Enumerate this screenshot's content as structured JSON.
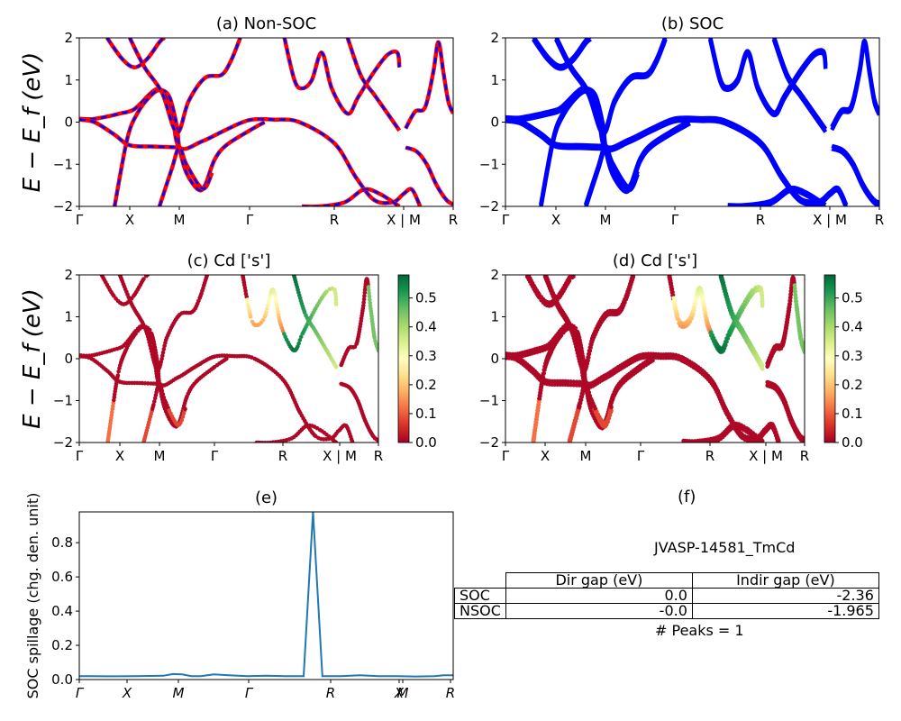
{
  "chart_data": [
    {
      "panel": "a",
      "type": "line",
      "title": "(a) Non-SOC",
      "ylabel": "E − E_f (eV)",
      "ylim": [
        -2,
        2
      ],
      "yticks": [
        "2",
        "1",
        "0",
        "−1",
        "−2"
      ],
      "xticks": [
        "Γ",
        "X",
        "M",
        "Γ",
        "R",
        "X | M",
        "R"
      ],
      "line_colors": [
        "#ff0000",
        "#0000ff"
      ],
      "bands": [
        [
          [
            0,
            0.08
          ],
          [
            0.25,
            0.07
          ],
          [
            0.5,
            0.12
          ],
          [
            0.8,
            0.2
          ],
          [
            1.05,
            0.28
          ],
          [
            1.2,
            0.42
          ],
          [
            1.4,
            0.66
          ],
          [
            1.55,
            0.78
          ],
          [
            1.7,
            0.7
          ],
          [
            1.85,
            0.3
          ],
          [
            2,
            -0.6
          ],
          [
            2.5,
            -0.45
          ],
          [
            3,
            -0.18
          ],
          [
            3.5,
            0.05
          ],
          [
            4,
            0.06
          ],
          [
            4.5,
            0.0
          ],
          [
            5.2,
            -0.5
          ],
          [
            5.6,
            -1.3
          ],
          [
            5.95,
            -1.85
          ],
          [
            6.3,
            -1.9
          ],
          [
            6.5,
            -1.7
          ],
          [
            6.75,
            -1.6
          ],
          [
            7.0,
            -2.0
          ]
        ],
        [
          [
            0,
            0.06
          ],
          [
            0.3,
            0.0
          ],
          [
            0.7,
            -0.3
          ],
          [
            1.0,
            -0.55
          ],
          [
            1.5,
            -0.58
          ],
          [
            2,
            -0.6
          ]
        ],
        [
          [
            0.7,
            -2.0
          ],
          [
            0.95,
            -0.4
          ],
          [
            1.15,
            0.2
          ],
          [
            1.4,
            0.6
          ],
          [
            1.6,
            0.76
          ],
          [
            1.8,
            0.6
          ],
          [
            1.95,
            -0.1
          ],
          [
            2,
            -0.6
          ],
          [
            2.15,
            -1.2
          ],
          [
            2.4,
            -1.6
          ],
          [
            2.55,
            -1.5
          ],
          [
            2.75,
            -0.9
          ],
          [
            3.0,
            -0.55
          ],
          [
            3.5,
            -0.2
          ],
          [
            3.8,
            0.0
          ]
        ],
        [
          [
            0.55,
            2.0
          ],
          [
            0.85,
            1.5
          ],
          [
            1.1,
            1.3
          ],
          [
            1.35,
            1.5
          ],
          [
            1.6,
            1.9
          ],
          [
            1.7,
            2.0
          ]
        ],
        [
          [
            1.0,
            2.0
          ],
          [
            1.3,
            1.3
          ],
          [
            1.65,
            0.7
          ],
          [
            1.95,
            -0.25
          ],
          [
            2.2,
            0.5
          ],
          [
            2.55,
            1.05
          ],
          [
            2.9,
            1.12
          ],
          [
            3.1,
            1.45
          ],
          [
            3.3,
            2.0
          ]
        ],
        [
          [
            1.6,
            -2.0
          ],
          [
            1.85,
            -1.1
          ],
          [
            2.0,
            -0.6
          ],
          [
            2.15,
            -1.0
          ],
          [
            2.5,
            -1.58
          ],
          [
            2.7,
            -1.2
          ]
        ],
        [
          [
            4.2,
            2.0
          ],
          [
            4.4,
            1.0
          ],
          [
            4.55,
            0.8
          ],
          [
            4.75,
            1.0
          ],
          [
            4.95,
            1.65
          ],
          [
            5.15,
            0.8
          ],
          [
            5.45,
            0.2
          ],
          [
            5.65,
            0.6
          ],
          [
            5.95,
            1.2
          ],
          [
            6.2,
            1.6
          ],
          [
            6.38,
            1.65
          ],
          [
            6.42,
            1.3
          ]
        ],
        [
          [
            5.45,
            2.0
          ],
          [
            5.7,
            1.1
          ],
          [
            5.95,
            0.65
          ],
          [
            6.2,
            0.2
          ],
          [
            6.42,
            -0.2
          ]
        ],
        [
          [
            4.55,
            -2.0
          ],
          [
            4.9,
            -2.0
          ],
          [
            5.4,
            -1.9
          ],
          [
            5.75,
            -1.6
          ],
          [
            6.05,
            -1.7
          ],
          [
            6.42,
            -2.0
          ]
        ],
        [
          [
            6.56,
            -0.15
          ],
          [
            6.85,
            0.25
          ],
          [
            7.15,
            0.35
          ],
          [
            7.4,
            1.2
          ],
          [
            7.55,
            1.9
          ],
          [
            7.7,
            1.2
          ],
          [
            7.85,
            0.5
          ],
          [
            8.0,
            0.2
          ]
        ],
        [
          [
            6.56,
            -0.6
          ],
          [
            6.9,
            -0.7
          ],
          [
            7.2,
            -1.0
          ],
          [
            7.5,
            -1.5
          ],
          [
            7.8,
            -1.85
          ],
          [
            8.0,
            -1.95
          ]
        ]
      ]
    },
    {
      "panel": "b",
      "type": "line",
      "title": "(b) SOC",
      "ylim": [
        -2,
        2
      ],
      "yticks": [
        "2",
        "1",
        "0",
        "−1",
        "−2"
      ],
      "xticks": [
        "Γ",
        "X",
        "M",
        "Γ",
        "R",
        "X | M",
        "R"
      ],
      "line_color": "#0000ff"
    },
    {
      "panel": "c",
      "type": "scatter",
      "title": "(c)  Cd ['s']",
      "ylabel": "E − E_f (eV)",
      "ylim": [
        -2,
        2
      ],
      "yticks": [
        "2",
        "1",
        "0",
        "−1",
        "−2"
      ],
      "xticks": [
        "Γ",
        "X",
        "M",
        "Γ",
        "R",
        "X | M",
        "R"
      ],
      "colorbar": {
        "ticks": [
          "0.5",
          "0.4",
          "0.3",
          "0.2",
          "0.1",
          "0.0"
        ],
        "range": [
          0,
          0.58
        ],
        "colormap": "RdYlGn"
      }
    },
    {
      "panel": "d",
      "type": "scatter",
      "title": "(d) Cd ['s']",
      "ylim": [
        -2,
        2
      ],
      "yticks": [
        "2",
        "1",
        "0",
        "−1",
        "−2"
      ],
      "xticks": [
        "Γ",
        "X",
        "M",
        "Γ",
        "R",
        "X | M",
        "R"
      ],
      "colorbar": {
        "ticks": [
          "0.5",
          "0.4",
          "0.3",
          "0.2",
          "0.1",
          "0.0"
        ],
        "range": [
          0,
          0.58
        ],
        "colormap": "RdYlGn"
      }
    },
    {
      "panel": "e",
      "type": "line",
      "title": "(e)",
      "ylabel": "SOC spillage (chg. den. unit)",
      "ylim": [
        0,
        0.98
      ],
      "yticks": [
        "0.8",
        "0.6",
        "0.4",
        "0.2",
        "0.0"
      ],
      "xticks": [
        "Γ",
        "X",
        "M",
        "Γ",
        "R",
        "X",
        "M",
        "R"
      ],
      "line_color": "#1f77b4",
      "x": [
        0,
        0.05,
        0.15,
        0.3,
        0.45,
        0.5,
        0.55,
        0.6,
        0.65,
        0.72,
        0.8,
        0.9,
        1.0,
        1.1,
        1.2,
        1.25,
        1.3,
        1.4,
        1.5,
        1.55,
        1.6,
        1.7,
        1.8,
        1.9,
        1.95,
        2.0
      ],
      "values": [
        0.02,
        0.02,
        0.019,
        0.02,
        0.022,
        0.032,
        0.03,
        0.02,
        0.02,
        0.03,
        0.025,
        0.02,
        0.022,
        0.02,
        0.02,
        0.98,
        0.02,
        0.02,
        0.025,
        0.022,
        0.02,
        0.02,
        0.018,
        0.02,
        0.025,
        0.025
      ]
    }
  ],
  "panel_f": {
    "title": "(f)",
    "material": "JVASP-14581_TmCd",
    "table": {
      "headers": [
        "Dir gap (eV)",
        "Indir gap (eV)"
      ],
      "rows": [
        {
          "label": "SOC",
          "dir": "0.0",
          "indir": "-2.36"
        },
        {
          "label": "NSOC",
          "dir": "-0.0",
          "indir": "-1.965"
        }
      ]
    },
    "peaks": "# Peaks = 1"
  }
}
